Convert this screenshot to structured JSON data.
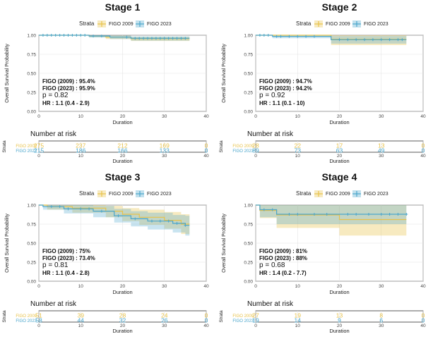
{
  "colors": {
    "figo2009": "#E8C24A",
    "figo2023": "#4BA6CC",
    "overlap": "#5E9E86"
  },
  "legend": {
    "title": "Strata",
    "items": [
      "FIGO 2009",
      "FIGO 2023"
    ]
  },
  "axis": {
    "ylabel": "Overall Survival Probability",
    "xlabel": "Duration",
    "xticks": [
      "0",
      "10",
      "20",
      "30",
      "40"
    ],
    "yticks": [
      "0.00",
      "0.25",
      "0.50",
      "0.75",
      "1.00"
    ]
  },
  "risk": {
    "title": "Number at risk",
    "ylabel": "Strata",
    "labels": [
      "FIGO 2009",
      "FIGO 2023"
    ]
  },
  "chart_data": [
    {
      "type": "line",
      "title": "Stage 1",
      "xlabel": "Duration",
      "ylabel": "Overall Survival Probability",
      "xlim": [
        0,
        40
      ],
      "ylim": [
        0,
        1
      ],
      "grid": true,
      "legend_position": "top",
      "annotations": [
        "FIGO (2009) : 95.4%",
        "FIGO (2023) : 95.9%",
        "p = 0.82",
        "HR : 1.1 (0.4 - 2.9)"
      ],
      "series": [
        {
          "name": "FIGO 2009",
          "x": [
            0,
            12,
            16,
            22,
            36
          ],
          "y": [
            1.0,
            0.99,
            0.975,
            0.955,
            0.955
          ],
          "lower": [
            1.0,
            0.975,
            0.95,
            0.925,
            0.925
          ],
          "upper": [
            1.0,
            1.0,
            0.995,
            0.98,
            0.98
          ]
        },
        {
          "name": "FIGO 2023",
          "x": [
            0,
            12,
            17,
            22,
            36
          ],
          "y": [
            1.0,
            0.99,
            0.975,
            0.96,
            0.96
          ],
          "lower": [
            1.0,
            0.97,
            0.95,
            0.93,
            0.93
          ],
          "upper": [
            1.0,
            1.0,
            0.995,
            0.985,
            0.985
          ]
        }
      ],
      "censor_x": [
        1,
        2,
        3,
        4,
        5,
        6,
        7,
        8,
        9,
        10,
        11,
        13,
        15,
        21,
        23,
        24,
        25,
        26,
        27,
        28,
        29,
        30,
        31,
        32,
        33,
        34,
        35
      ],
      "risk_table": {
        "times": [
          0,
          10,
          20,
          30,
          40
        ],
        "FIGO 2009": [
          "275",
          "237",
          "212",
          "169",
          "0"
        ],
        "FIGO 2023": [
          "215",
          "186",
          "166",
          "133",
          "0"
        ]
      }
    },
    {
      "type": "line",
      "title": "Stage 2",
      "xlabel": "Duration",
      "ylabel": "Overall Survival Probability",
      "xlim": [
        0,
        40
      ],
      "ylim": [
        0,
        1
      ],
      "grid": true,
      "legend_position": "top",
      "annotations": [
        "FIGO (2009) : 94.7%",
        "FIGO (2023) : 94.2%",
        "p = 0.92",
        "HR : 1.1 (0.1 - 10)"
      ],
      "series": [
        {
          "name": "FIGO 2009",
          "x": [
            0,
            18,
            36
          ],
          "y": [
            1.0,
            0.947,
            0.947
          ],
          "lower": [
            1.0,
            0.87,
            0.87
          ],
          "upper": [
            1.0,
            1.0,
            1.0
          ]
        },
        {
          "name": "FIGO 2023",
          "x": [
            0,
            4,
            18,
            36
          ],
          "y": [
            1.0,
            0.985,
            0.942,
            0.942
          ],
          "lower": [
            1.0,
            0.96,
            0.89,
            0.89
          ],
          "upper": [
            1.0,
            1.0,
            0.99,
            0.99
          ]
        }
      ],
      "censor_x": [
        1,
        2,
        3,
        5,
        6,
        8,
        10,
        12,
        14,
        20,
        22,
        24,
        26,
        28,
        30,
        32,
        34,
        35
      ],
      "risk_table": {
        "times": [
          0,
          10,
          20,
          30,
          40
        ],
        "FIGO 2009": [
          "28",
          "22",
          "17",
          "13",
          "0"
        ],
        "FIGO 2023": [
          "89",
          "73",
          "63",
          "49",
          "0"
        ]
      }
    },
    {
      "type": "line",
      "title": "Stage 3",
      "xlabel": "Duration",
      "ylabel": "Overall Survival Probability",
      "xlim": [
        0,
        40
      ],
      "ylim": [
        0,
        1
      ],
      "grid": true,
      "legend_position": "top",
      "annotations": [
        "FIGO (2009) : 75%",
        "FIGO (2023) : 73.4%",
        "p = 0.81",
        "HR : 1.1 (0.4 - 2.8)"
      ],
      "series": [
        {
          "name": "FIGO 2009",
          "x": [
            0,
            2,
            8,
            16,
            20,
            24,
            30,
            34,
            36
          ],
          "y": [
            1.0,
            0.98,
            0.96,
            0.92,
            0.88,
            0.84,
            0.8,
            0.75,
            0.75
          ],
          "lower": [
            1.0,
            0.94,
            0.9,
            0.84,
            0.79,
            0.74,
            0.69,
            0.62,
            0.62
          ],
          "upper": [
            1.0,
            1.0,
            1.0,
            0.99,
            0.96,
            0.94,
            0.91,
            0.88,
            0.88
          ]
        },
        {
          "name": "FIGO 2023",
          "x": [
            0,
            1,
            6,
            13,
            18,
            22,
            26,
            32,
            35,
            36
          ],
          "y": [
            1.0,
            0.98,
            0.95,
            0.92,
            0.86,
            0.82,
            0.79,
            0.76,
            0.734,
            0.734
          ],
          "lower": [
            1.0,
            0.94,
            0.89,
            0.84,
            0.77,
            0.72,
            0.68,
            0.64,
            0.6,
            0.6
          ],
          "upper": [
            1.0,
            1.0,
            1.0,
            0.99,
            0.95,
            0.92,
            0.9,
            0.87,
            0.86,
            0.86
          ]
        }
      ],
      "censor_x": [
        3,
        5,
        7,
        10,
        12,
        15,
        19,
        23,
        27,
        29,
        31,
        33,
        35
      ],
      "risk_table": {
        "times": [
          0,
          10,
          20,
          30,
          40
        ],
        "FIGO 2009": [
          "51",
          "39",
          "28",
          "24",
          "0"
        ],
        "FIGO 2023": [
          "58",
          "44",
          "32",
          "26",
          "0"
        ]
      }
    },
    {
      "type": "line",
      "title": "Stage 4",
      "xlabel": "Duration",
      "ylabel": "Overall Survival Probability",
      "xlim": [
        0,
        40
      ],
      "ylim": [
        0,
        1
      ],
      "grid": true,
      "legend_position": "top",
      "annotations": [
        "FIGO (2009) : 81%",
        "FIGO (2023) : 88%",
        "p = 0.68",
        "HR : 1.4 (0.2 - 7.7)"
      ],
      "series": [
        {
          "name": "FIGO 2009",
          "x": [
            0,
            1,
            5,
            20,
            36
          ],
          "y": [
            1.0,
            0.93,
            0.87,
            0.81,
            0.81
          ],
          "lower": [
            1.0,
            0.83,
            0.7,
            0.6,
            0.6
          ],
          "upper": [
            1.0,
            1.0,
            1.0,
            1.0,
            1.0
          ]
        },
        {
          "name": "FIGO 2023",
          "x": [
            0,
            1,
            5,
            36
          ],
          "y": [
            1.0,
            0.94,
            0.88,
            0.88
          ],
          "lower": [
            1.0,
            0.84,
            0.75,
            0.75
          ],
          "upper": [
            1.0,
            1.0,
            1.0,
            1.0
          ]
        }
      ],
      "censor_x": [
        2,
        4,
        8,
        10,
        14,
        17,
        22,
        24,
        27,
        30,
        32,
        34,
        36
      ],
      "risk_table": {
        "times": [
          0,
          10,
          20,
          30,
          40
        ],
        "FIGO 2009": [
          "27",
          "19",
          "13",
          "8",
          "0"
        ],
        "FIGO 2023": [
          "19",
          "14",
          "9",
          "6",
          "0"
        ]
      }
    }
  ]
}
